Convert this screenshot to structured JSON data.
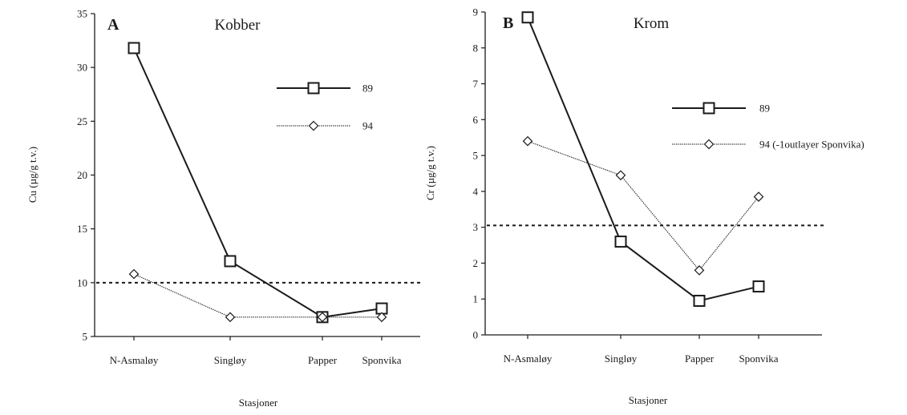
{
  "chart_data": [
    {
      "type": "line",
      "panel_letter": "A",
      "title": "Kobber",
      "xlabel": "Stasjoner",
      "ylabel": "Cu (µg/g t.v.)",
      "categories": [
        "N-Asmaløy",
        "Singløy",
        "Papper",
        "Sponvika"
      ],
      "ylim": [
        5,
        35
      ],
      "yticks": [
        "5",
        "10",
        "15",
        "20",
        "25",
        "30",
        "35"
      ],
      "reference_line": 10,
      "grid": false,
      "legend_position": "top-right",
      "series": [
        {
          "name": "89",
          "marker": "square",
          "values": [
            31.8,
            12.0,
            6.8,
            7.6
          ]
        },
        {
          "name": "94",
          "marker": "diamond",
          "values": [
            10.8,
            6.8,
            6.8,
            6.8
          ]
        }
      ]
    },
    {
      "type": "line",
      "panel_letter": "B",
      "title": "Krom",
      "xlabel": "Stasjoner",
      "ylabel": "Cr (µg/g t.v.)",
      "categories": [
        "N-Asmaløy",
        "Singløy",
        "Papper",
        "Sponvika"
      ],
      "ylim": [
        0,
        9
      ],
      "yticks": [
        "0",
        "1",
        "2",
        "3",
        "4",
        "5",
        "6",
        "7",
        "8",
        "9"
      ],
      "reference_line": 3.05,
      "grid": false,
      "legend_position": "top-right",
      "series": [
        {
          "name": "89",
          "marker": "square",
          "values": [
            8.85,
            2.6,
            0.95,
            1.35
          ]
        },
        {
          "name": "94 (-1outlayer Sponvika)",
          "marker": "diamond",
          "values": [
            5.4,
            4.45,
            1.8,
            3.85
          ]
        }
      ]
    }
  ]
}
